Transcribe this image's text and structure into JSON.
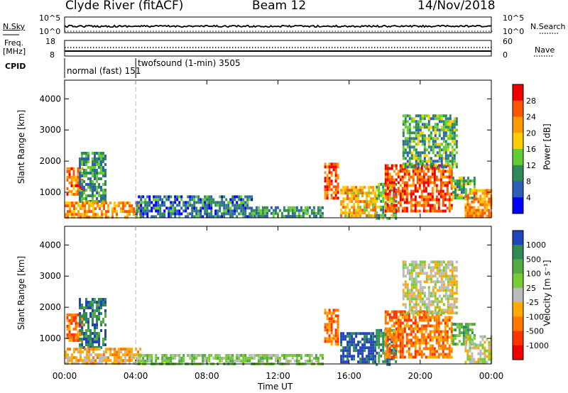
{
  "header": {
    "station": "Clyde River (fitACF)",
    "beam": "Beam 12",
    "date": "14/Nov/2018"
  },
  "top_panels": {
    "nsky_label": "N.Sky",
    "nsky_ticks": [
      "10^5",
      "10^0"
    ],
    "nsearch_label": "N.Search",
    "nsearch_ticks": [
      "10^5",
      "10^0"
    ],
    "freq_label_line1": "Freq.",
    "freq_label_line2": "[MHz]",
    "freq_ticks": [
      "18",
      "8"
    ],
    "nave_label": "Nave",
    "nave_ticks": [
      "60",
      "0"
    ],
    "cpid_label": "CPID",
    "cpid_entries": [
      {
        "text": "normal (fast) 151",
        "start_hour": 0
      },
      {
        "text": "twofsound (1-min) 3505",
        "start_hour": 4
      }
    ]
  },
  "chart_data": [
    {
      "type": "heatmap",
      "panel": "power",
      "ylabel": "Slant Range [km]",
      "yticks": [
        "1000",
        "2000",
        "3000",
        "4000"
      ],
      "ylim": [
        180,
        4600
      ],
      "xlim": [
        0,
        24
      ],
      "colorbar_label": "Power [dB]",
      "colorbar_ticks": [
        "4",
        "8",
        "12",
        "16",
        "20",
        "24",
        "28"
      ],
      "colorbar_range": [
        0,
        32
      ],
      "colormap": [
        "#0000ff",
        "#2c5fb5",
        "#2e8b57",
        "#66cc33",
        "#ffcc00",
        "#ff9900",
        "#ff5500",
        "#ee0000"
      ],
      "regions": [
        {
          "h0": 0.1,
          "h1": 1.0,
          "r0": 900,
          "r1": 1800,
          "v": 24
        },
        {
          "h0": 0.8,
          "h1": 2.3,
          "r0": 700,
          "r1": 2300,
          "v": 10
        },
        {
          "h0": 0.0,
          "h1": 4.2,
          "r0": 200,
          "r1": 700,
          "v": 22
        },
        {
          "h0": 4.0,
          "h1": 10.5,
          "r0": 200,
          "r1": 900,
          "v": 8
        },
        {
          "h0": 10.5,
          "h1": 14.5,
          "r0": 200,
          "r1": 550,
          "v": 10
        },
        {
          "h0": 14.6,
          "h1": 15.4,
          "r0": 850,
          "r1": 1950,
          "v": 26
        },
        {
          "h0": 15.5,
          "h1": 17.5,
          "r0": 200,
          "r1": 1200,
          "v": 20
        },
        {
          "h0": 17.5,
          "h1": 18.6,
          "r0": 200,
          "r1": 1300,
          "v": 12
        },
        {
          "h0": 18.0,
          "h1": 21.8,
          "r0": 400,
          "r1": 1900,
          "v": 26
        },
        {
          "h0": 19.0,
          "h1": 22.0,
          "r0": 1800,
          "r1": 3500,
          "v": 12
        },
        {
          "h0": 21.8,
          "h1": 23.0,
          "r0": 800,
          "r1": 1500,
          "v": 12
        },
        {
          "h0": 22.5,
          "h1": 24.0,
          "r0": 200,
          "r1": 1100,
          "v": 22
        }
      ]
    },
    {
      "type": "heatmap",
      "panel": "velocity",
      "ylabel": "Slant Range [km]",
      "yticks": [
        "1000",
        "2000",
        "3000",
        "4000"
      ],
      "ylim": [
        180,
        4600
      ],
      "xlim": [
        0,
        24
      ],
      "xticks": [
        "00:00",
        "04:00",
        "08:00",
        "12:00",
        "16:00",
        "20:00",
        "00:00"
      ],
      "xlabel": "Time UT",
      "colorbar_label": "Velocity [m s⁻¹]",
      "colorbar_ticks": [
        "1000",
        "500",
        "100",
        "25",
        "-25",
        "-100",
        "-500",
        "-1000"
      ],
      "colormap": [
        "#2244bb",
        "#2e8b57",
        "#55aa44",
        "#77cc33",
        "#bbbbbb",
        "#ffaa00",
        "#ff7700",
        "#ff3300",
        "#ee0000"
      ],
      "regions": [
        {
          "h0": 0.1,
          "h1": 1.0,
          "r0": 900,
          "r1": 1800,
          "c": 6
        },
        {
          "h0": 0.8,
          "h1": 2.3,
          "r0": 700,
          "r1": 2300,
          "c": 1
        },
        {
          "h0": 0.0,
          "h1": 4.2,
          "r0": 200,
          "r1": 700,
          "c": 5
        },
        {
          "h0": 4.0,
          "h1": 10.5,
          "r0": 200,
          "r1": 500,
          "c": 3
        },
        {
          "h0": 10.5,
          "h1": 14.5,
          "r0": 200,
          "r1": 500,
          "c": 3
        },
        {
          "h0": 14.6,
          "h1": 15.4,
          "r0": 850,
          "r1": 1950,
          "c": 6
        },
        {
          "h0": 15.5,
          "h1": 17.5,
          "r0": 200,
          "r1": 1200,
          "c": 0
        },
        {
          "h0": 17.5,
          "h1": 18.6,
          "r0": 200,
          "r1": 1300,
          "c": 1
        },
        {
          "h0": 18.0,
          "h1": 21.8,
          "r0": 400,
          "r1": 1900,
          "c": 6
        },
        {
          "h0": 19.0,
          "h1": 22.0,
          "r0": 1800,
          "r1": 3500,
          "c": 4
        },
        {
          "h0": 21.8,
          "h1": 23.0,
          "r0": 800,
          "r1": 1500,
          "c": 2
        },
        {
          "h0": 22.5,
          "h1": 24.0,
          "r0": 200,
          "r1": 1100,
          "c": 4
        }
      ]
    }
  ]
}
